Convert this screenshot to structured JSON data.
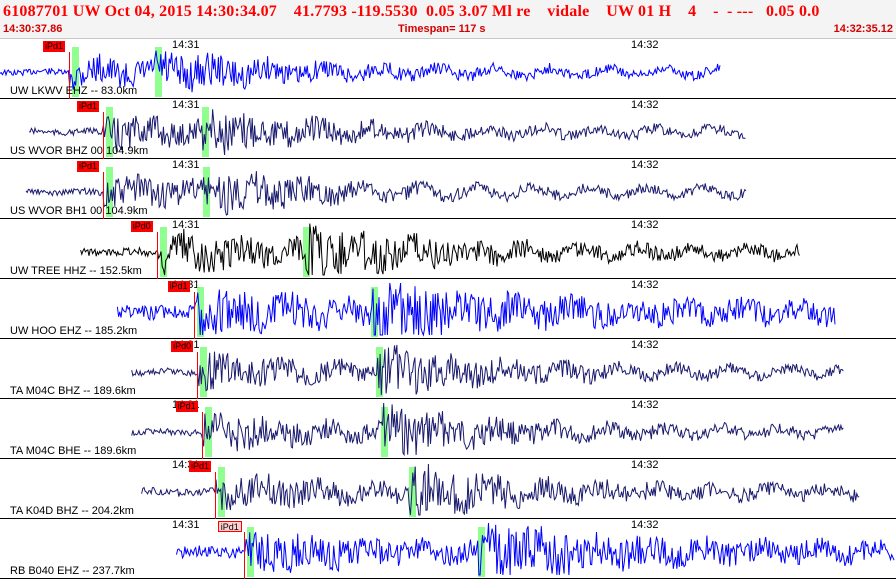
{
  "header": {
    "title": "61087701 UW Oct 04, 2015 14:30:34.07    41.7793 -119.5530  0.05 3.07 Ml re    vidale    UW 01 H    4    -  - ---   0.05 0.0",
    "start_time": "14:30:37.86",
    "timespan": "Timespan= 117 s",
    "end_time": "14:32:35.12"
  },
  "colors": {
    "title": "#ff0000",
    "blue_trace": "#0000ff",
    "navy_trace": "#1a1a6e",
    "black_trace": "#000000",
    "pick": "#ff0000",
    "window": "#7dff7d"
  },
  "time_marks": [
    "14:31",
    "14:32"
  ],
  "panels": [
    {
      "label": "UW LKWV EHZ -- 83.0km",
      "pick": "iPd1",
      "color": "blue",
      "amp": 14,
      "noise": 3,
      "start": 0.0,
      "end": 0.8036,
      "p": 0.077,
      "s": 0.173,
      "p_label": "iPd1"
    },
    {
      "label": "US WVOR BHZ 00 104.9km",
      "pick": "iPd1",
      "color": "navy",
      "amp": 16,
      "noise": 3,
      "start": 0.0324,
      "end": 0.8326,
      "p": 0.115,
      "s": 0.225,
      "p_label": "iPd1"
    },
    {
      "label": "US WVOR BH1 00 104.9km",
      "pick": "iPd1",
      "color": "navy",
      "amp": 15,
      "noise": 3,
      "start": 0.029,
      "end": 0.8326,
      "p": 0.115,
      "s": 0.227,
      "p_label": "iPd1"
    },
    {
      "label": "UW TREE HHZ -- 152.5km",
      "pick": "iPd0",
      "color": "black",
      "amp": 20,
      "noise": 4,
      "start": 0.09,
      "end": 0.893,
      "p": 0.175,
      "s": 0.338,
      "p_label": "iPd0"
    },
    {
      "label": "UW HOO EHZ -- 185.2km",
      "pick": "iPd1",
      "color": "blue",
      "amp": 18,
      "noise": 7,
      "start": 0.131,
      "end": 0.933,
      "p": 0.216,
      "s": 0.414,
      "p_label": "iPd1"
    },
    {
      "label": "TA M04C BHZ -- 189.6km",
      "pick": "iPd0",
      "color": "navy",
      "amp": 18,
      "noise": 3,
      "start": 0.147,
      "end": 0.942,
      "p": 0.22,
      "s": 0.42,
      "p_label": "iPd0"
    },
    {
      "label": "TA M04C BHE -- 189.6km",
      "pick": "iPd1",
      "color": "navy",
      "amp": 18,
      "noise": 3,
      "start": 0.147,
      "end": 0.942,
      "p": 0.225,
      "s": 0.425,
      "p_label": "iPd1"
    },
    {
      "label": "TA K04D BHZ -- 204.2km",
      "pick": "iPd1",
      "color": "navy",
      "amp": 16,
      "noise": 4,
      "start": 0.158,
      "end": 0.96,
      "p": 0.24,
      "s": 0.456,
      "p_label": "iPd1"
    },
    {
      "label": "RB B040 EHZ -- 237.7km",
      "pick": "iPd1",
      "color": "blue",
      "amp": 18,
      "noise": 6,
      "start": 0.197,
      "end": 0.999,
      "p": 0.272,
      "s": 0.533,
      "p_label": "iPd1"
    }
  ]
}
